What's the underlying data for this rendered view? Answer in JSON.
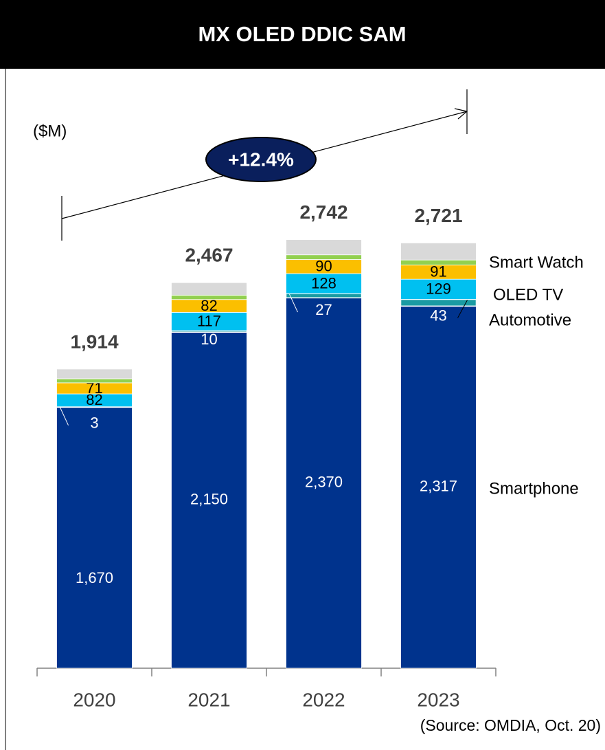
{
  "chart_data": {
    "type": "bar",
    "stacked": true,
    "title": "MX OLED DDIC SAM",
    "unit_label": "($M)",
    "annotation": "+12.4%",
    "source": "(Source: OMDIA, Oct. 20)",
    "categories": [
      "2020",
      "2021",
      "2022",
      "2023"
    ],
    "totals": [
      1914,
      2467,
      2742,
      2721
    ],
    "total_labels": [
      "1,914",
      "2,467",
      "2,742",
      "2,721"
    ],
    "ylim": [
      0,
      3000
    ],
    "series": [
      {
        "name": "Smartphone",
        "color": "#00338d",
        "values": [
          1670,
          2150,
          2370,
          2317
        ],
        "value_labels": [
          "1,670",
          "2,150",
          "2,370",
          "2,317"
        ]
      },
      {
        "name": "Automotive",
        "color": "#1a9ba3",
        "values": [
          3,
          10,
          27,
          43
        ]
      },
      {
        "name": "OLED TV",
        "color": "#00c0f0",
        "values": [
          82,
          117,
          128,
          129
        ]
      },
      {
        "name": "Smart Watch",
        "color": "#fbbf00",
        "values": [
          71,
          82,
          90,
          91
        ]
      },
      {
        "color": "#92d050",
        "values": [
          26,
          28,
          30,
          32
        ]
      },
      {
        "color": "#d9d9d9",
        "values": [
          62,
          80,
          97,
          109
        ]
      }
    ]
  }
}
